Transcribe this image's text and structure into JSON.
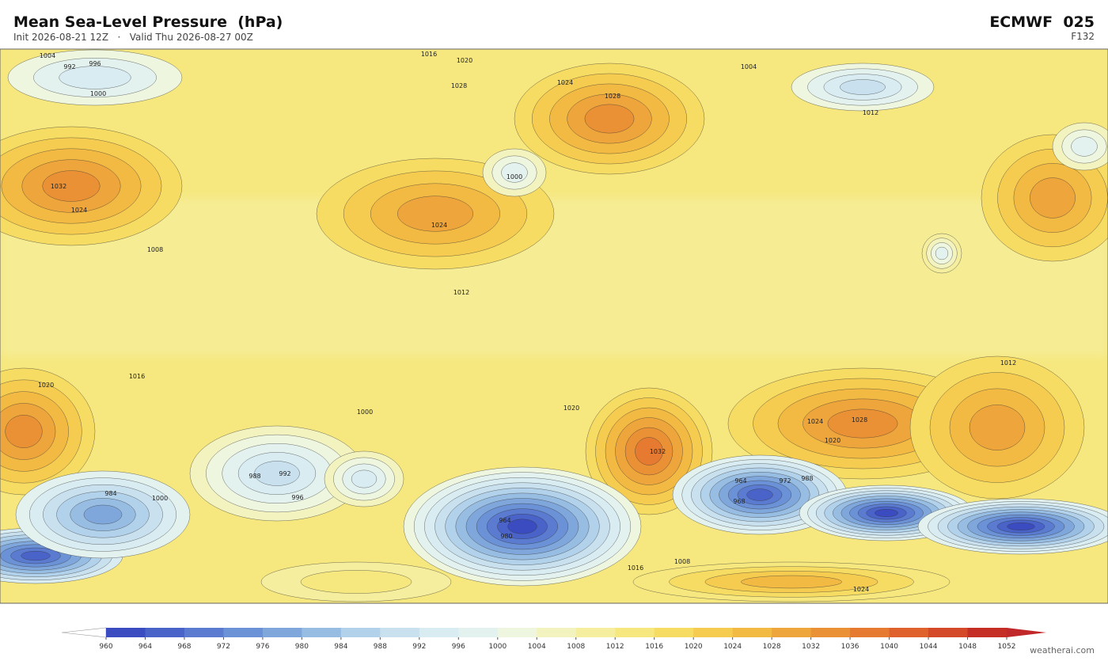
{
  "header": {
    "title": "Mean Sea-Level Pressure  (hPa)",
    "subtitle": "Init 2026-08-21 12Z   ·   Valid Thu 2026-08-27 00Z",
    "model": "ECMWF  025",
    "step": "F132"
  },
  "colorbar": {
    "ticks": [
      960,
      964,
      968,
      972,
      976,
      980,
      984,
      988,
      992,
      996,
      1000,
      1004,
      1008,
      1012,
      1016,
      1020,
      1024,
      1028,
      1032,
      1036,
      1040,
      1044,
      1048,
      1052
    ],
    "colors": [
      "#3b4cc0",
      "#4a63c8",
      "#5a7bd0",
      "#6b91d6",
      "#80a7dc",
      "#98bde3",
      "#b2d1ea",
      "#c9e1ef",
      "#d8ecf2",
      "#e4f2ef",
      "#eef6df",
      "#f3f3c0",
      "#f5ee9e",
      "#f6e87e",
      "#f6dc62",
      "#f5cc50",
      "#f2b943",
      "#eea53b",
      "#eb9135",
      "#e67a30",
      "#df622c",
      "#d44a28",
      "#c42e25"
    ],
    "under_color": "#ffffff",
    "over_color": "#c0282a"
  },
  "map": {
    "contour_labels": [
      1004,
      992,
      996,
      1000,
      1016,
      1020,
      1028,
      1024,
      1028,
      1032,
      1024,
      1024,
      1000,
      1008,
      1012,
      1012,
      1016,
      1020,
      1000,
      1020,
      1032,
      988,
      992,
      996,
      964,
      968,
      972,
      988,
      1028,
      1024,
      1020,
      1000,
      980,
      984,
      964,
      1008,
      1016,
      1024,
      1004,
      1012
    ]
  },
  "footer": {
    "credit": "weatherai.com"
  }
}
